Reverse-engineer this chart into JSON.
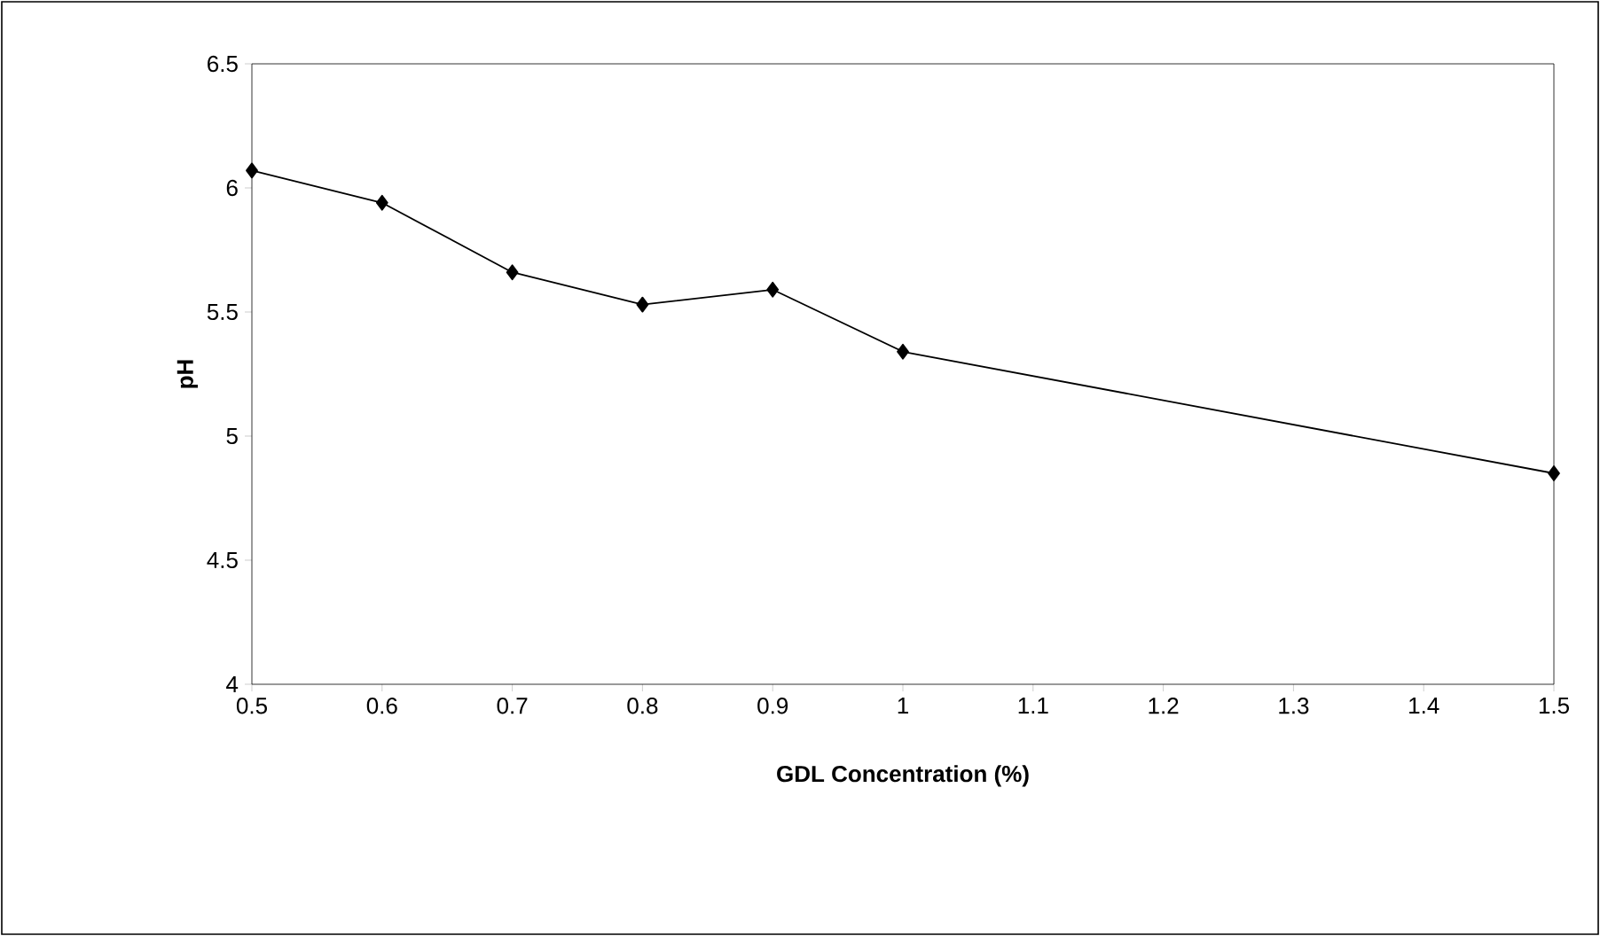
{
  "chart_data": {
    "type": "line",
    "xlabel": "GDL Concentration (%)",
    "ylabel": "pH",
    "x": [
      0.5,
      0.6,
      0.7,
      0.8,
      0.9,
      1,
      1.5
    ],
    "series": [
      {
        "color": "#000000",
        "values": [
          6.07,
          5.94,
          5.66,
          5.53,
          5.59,
          5.34,
          4.85
        ]
      }
    ],
    "xlim": [
      0.5,
      1.5
    ],
    "xticks": [
      0.5,
      0.6,
      0.7,
      0.8,
      0.9,
      1,
      1.1,
      1.2,
      1.3,
      1.4,
      1.5
    ],
    "ylim": [
      4,
      6.5
    ],
    "yticks": [
      4,
      4.5,
      5,
      5.5,
      6,
      6.5
    ],
    "grid": false,
    "marker": "diamond",
    "line_style": "solid"
  }
}
